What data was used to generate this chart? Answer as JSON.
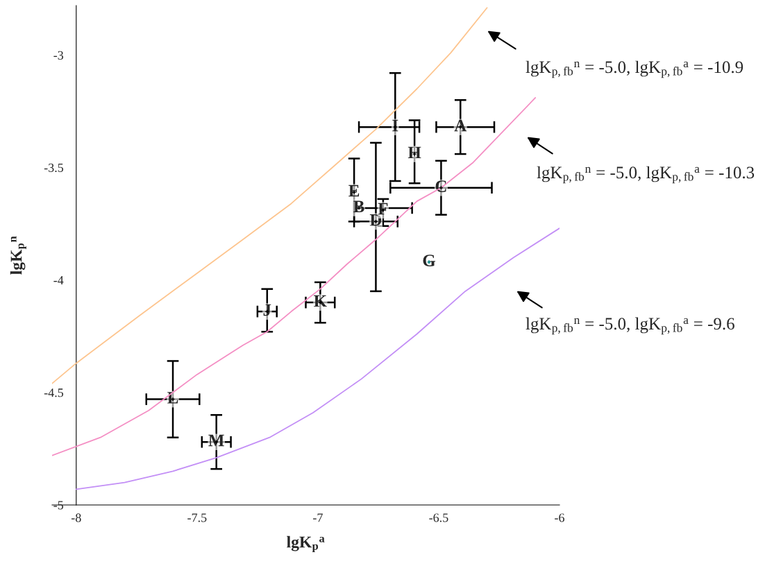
{
  "chart_data": {
    "type": "scatter",
    "xlabel": "lgK$_{p}$$^{a}$",
    "ylabel": "lgK$_{p}$$^{n}$",
    "xlim": [
      -8.1,
      -6
    ],
    "ylim": [
      -5,
      -2.78
    ],
    "xticks": [
      -8,
      -7.5,
      -7,
      -6.5,
      -6
    ],
    "yticks": [
      -5,
      -4.5,
      -4,
      -3.5,
      -3
    ],
    "grid": false,
    "legend": false,
    "series": [
      {
        "type": "line",
        "color": "#fdc58f",
        "x": [
          -8.1,
          -8,
          -7.74,
          -7.5,
          -7.31,
          -7.11,
          -6.94,
          -6.76,
          -6.59,
          -6.45,
          -6.3
        ],
        "values": [
          -4.46,
          -4.37,
          -4.16,
          -3.97,
          -3.82,
          -3.66,
          -3.5,
          -3.33,
          -3.15,
          -2.99,
          -2.79
        ]
      },
      {
        "type": "line",
        "color": "#f48fc4",
        "x": [
          -8.1,
          -7.9,
          -7.7,
          -7.5,
          -7.31,
          -7.21,
          -7.11,
          -6.99,
          -6.88,
          -6.76,
          -6.59,
          -6.49,
          -6.36,
          -6.1
        ],
        "values": [
          -4.78,
          -4.7,
          -4.58,
          -4.42,
          -4.29,
          -4.23,
          -4.14,
          -4.04,
          -3.93,
          -3.82,
          -3.65,
          -3.59,
          -3.48,
          -3.19
        ]
      },
      {
        "type": "line",
        "color": "#c38ff6",
        "x": [
          -8,
          -7.8,
          -7.6,
          -7.42,
          -7.2,
          -7.02,
          -6.82,
          -6.59,
          -6.39,
          -6.19,
          -6
        ],
        "values": [
          -4.93,
          -4.9,
          -4.85,
          -4.79,
          -4.7,
          -4.59,
          -4.44,
          -4.24,
          -4.05,
          -3.9,
          -3.77
        ]
      },
      {
        "marker": "cross",
        "color": "#000000",
        "colors": [
          "#000000",
          "#000000",
          "#000000",
          "#000000",
          "#000000",
          "#000000",
          "#008080",
          "#000000",
          "#000000",
          "#000000",
          "#000000",
          "#000000",
          "#000000"
        ],
        "x": [
          -6.41,
          -6.83,
          -6.49,
          -6.76,
          -6.85,
          -6.73,
          -6.54,
          -6.6,
          -6.68,
          -7.21,
          -6.99,
          -7.6,
          -7.42
        ],
        "values": [
          -3.32,
          -3.68,
          -3.59,
          -3.74,
          -3.61,
          -3.69,
          -3.92,
          -3.44,
          -3.32,
          -4.14,
          -4.1,
          -4.53,
          -4.72
        ],
        "errors": [
          [
            -3.44,
            -3.2
          ],
          null,
          [
            -3.71,
            -3.47
          ],
          [
            -4.05,
            -3.39
          ],
          [
            -3.74,
            -3.46
          ],
          [
            -3.76,
            -3.64
          ],
          null,
          [
            -3.57,
            -3.29
          ],
          [
            -3.56,
            -3.08
          ],
          [
            -4.23,
            -4.04
          ],
          [
            -4.19,
            -4.01
          ],
          [
            -4.7,
            -4.36
          ],
          [
            -4.84,
            -4.6
          ]
        ],
        "xerrors": [
          [
            -6.51,
            -6.27
          ],
          [
            -6.85,
            -6.61
          ],
          [
            -6.7,
            -6.28
          ],
          [
            -6.85,
            -6.67
          ],
          null,
          null,
          null,
          null,
          [
            -6.83,
            -6.58
          ],
          [
            -7.25,
            -7.17
          ],
          [
            -7.05,
            -6.93
          ],
          [
            -7.71,
            -7.49
          ],
          [
            -7.48,
            -7.36
          ]
        ]
      }
    ],
    "annotations": [
      {
        "text": "A",
        "x": -6.41,
        "y": -3.32
      },
      {
        "text": "B",
        "x": -6.83,
        "y": -3.68
      },
      {
        "text": "C",
        "x": -6.49,
        "y": -3.59
      },
      {
        "text": "D",
        "x": -6.76,
        "y": -3.74
      },
      {
        "text": "E",
        "x": -6.85,
        "y": -3.61
      },
      {
        "text": "F",
        "x": -6.73,
        "y": -3.69
      },
      {
        "text": "G",
        "x": -6.54,
        "y": -3.92
      },
      {
        "text": "H",
        "x": -6.6,
        "y": -3.44
      },
      {
        "text": "I",
        "x": -6.68,
        "y": -3.32
      },
      {
        "text": "J",
        "x": -7.21,
        "y": -4.14
      },
      {
        "text": "K",
        "x": -6.99,
        "y": -4.1
      },
      {
        "text": "L",
        "x": -7.6,
        "y": -4.53
      },
      {
        "text": "M",
        "x": -7.42,
        "y": -4.72
      },
      "lgK$_{p,fb}$$^{n}$ = -5.0, lgK$_{p,fb}$$^{a}$ = -10.9",
      "lgK$_{p,fb}$$^{n}$ = -5.0, lgK$_{p,fb}$$^{a}$ = -10.3",
      "lgK$_{p,fb}$$^{n}$ = -5.0, lgK$_{p,fb}$$^{a}$ = -9.6"
    ]
  }
}
